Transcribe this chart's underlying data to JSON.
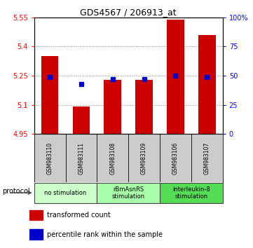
{
  "title": "GDS4567 / 206913_at",
  "samples": [
    "GSM983110",
    "GSM983111",
    "GSM983108",
    "GSM983109",
    "GSM983106",
    "GSM983107"
  ],
  "transformed_counts": [
    5.35,
    5.09,
    5.23,
    5.23,
    5.54,
    5.46
  ],
  "percentile_ranks": [
    49,
    43,
    47,
    47,
    50,
    49
  ],
  "ylim_left": [
    4.95,
    5.55
  ],
  "ylim_right": [
    0,
    100
  ],
  "yticks_left": [
    4.95,
    5.1,
    5.25,
    5.4,
    5.55
  ],
  "yticks_right": [
    0,
    25,
    50,
    75,
    100
  ],
  "ytick_labels_left": [
    "4.95",
    "5.1",
    "5.25",
    "5.4",
    "5.55"
  ],
  "ytick_labels_right": [
    "0",
    "25",
    "50",
    "75",
    "100%"
  ],
  "bar_color": "#cc0000",
  "dot_color": "#0000cc",
  "bar_width": 0.55,
  "protocol_label": "protocol",
  "legend_red": "transformed count",
  "legend_blue": "percentile rank within the sample",
  "grid_color": "#888888",
  "bg_sample_row": "#cccccc",
  "protocol_groups": [
    {
      "start": 0,
      "end": 1,
      "label": "no stimulation",
      "color": "#ccffcc"
    },
    {
      "start": 2,
      "end": 3,
      "label": "rBmAsnRS\nstimulation",
      "color": "#aaffaa"
    },
    {
      "start": 4,
      "end": 5,
      "label": "interleukin-8\nstimulation",
      "color": "#55dd55"
    }
  ]
}
